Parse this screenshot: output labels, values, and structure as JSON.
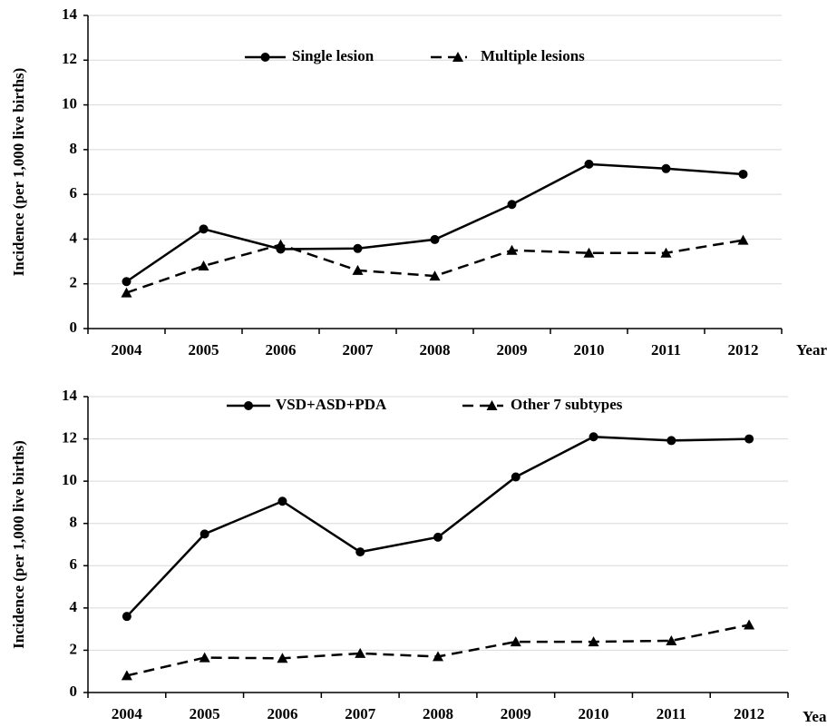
{
  "chart_data": [
    {
      "type": "line",
      "y_label": "Incidence (per 1,000 live births)",
      "x_label": "Year",
      "categories": [
        "2004",
        "2005",
        "2006",
        "2007",
        "2008",
        "2009",
        "2010",
        "2011",
        "2012"
      ],
      "ylim": [
        0,
        14
      ],
      "yticks": [
        0,
        2,
        4,
        6,
        8,
        10,
        12,
        14
      ],
      "grid": true,
      "series": [
        {
          "name": "Single lesion",
          "color": "#000000",
          "linestyle": "solid",
          "marker": "circle",
          "values": [
            2.1,
            4.45,
            3.55,
            3.58,
            3.98,
            5.55,
            7.35,
            7.15,
            6.9
          ]
        },
        {
          "name": "Multiple lesions",
          "color": "#000000",
          "linestyle": "dashed",
          "marker": "triangle",
          "values": [
            1.6,
            2.8,
            3.75,
            2.6,
            2.35,
            3.5,
            3.38,
            3.38,
            3.95
          ]
        }
      ]
    },
    {
      "type": "line",
      "y_label": "Incidence (per 1,000 live births)",
      "x_label": "Year",
      "categories": [
        "2004",
        "2005",
        "2006",
        "2007",
        "2008",
        "2009",
        "2010",
        "2011",
        "2012"
      ],
      "ylim": [
        0,
        14
      ],
      "yticks": [
        0,
        2,
        4,
        6,
        8,
        10,
        12,
        14
      ],
      "grid": true,
      "series": [
        {
          "name": "VSD+ASD+PDA",
          "color": "#000000",
          "linestyle": "solid",
          "marker": "circle",
          "values": [
            3.6,
            7.5,
            9.05,
            6.65,
            7.35,
            10.2,
            12.1,
            11.92,
            12.0
          ]
        },
        {
          "name": "Other 7 subtypes",
          "color": "#000000",
          "linestyle": "dashed",
          "marker": "triangle",
          "values": [
            0.8,
            1.65,
            1.62,
            1.85,
            1.7,
            2.4,
            2.4,
            2.45,
            3.2
          ]
        }
      ]
    }
  ]
}
